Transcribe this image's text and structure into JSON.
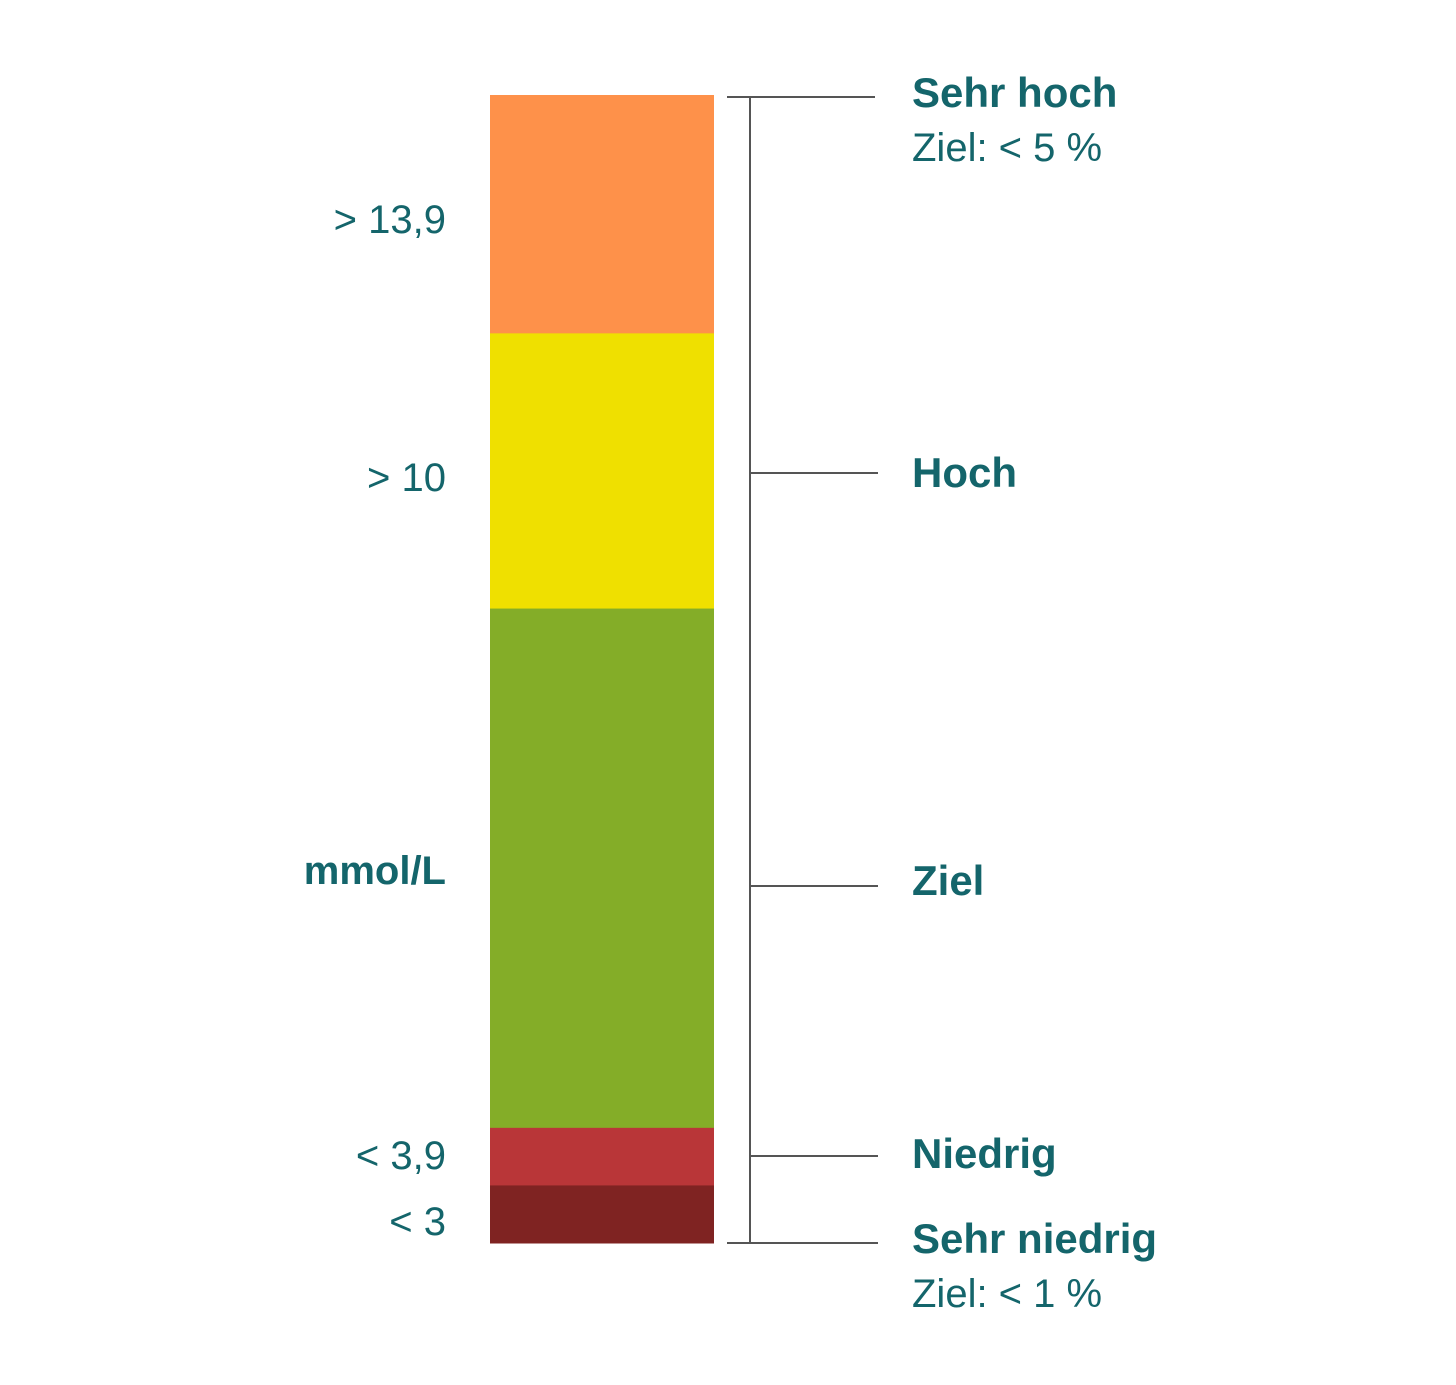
{
  "chart_data": {
    "type": "stacked-range-bar",
    "unit": "mmol/L",
    "ranges": [
      {
        "key": "sehr_hoch",
        "name": "Sehr hoch",
        "threshold": "> 13,9",
        "target": "Ziel: < 5 %",
        "color": "#fe914a",
        "share": 20.7
      },
      {
        "key": "hoch",
        "name": "Hoch",
        "threshold": "> 10",
        "target": "",
        "color": "#efe000",
        "share": 23.9
      },
      {
        "key": "ziel",
        "name": "Ziel",
        "threshold": "",
        "target": "",
        "color": "#84ad28",
        "share": 45.1
      },
      {
        "key": "niedrig",
        "name": "Niedrig",
        "threshold": "< 3,9",
        "target": "",
        "color": "#b93638",
        "share": 5.0
      },
      {
        "key": "sehr_niedrig",
        "name": "Sehr niedrig",
        "threshold": "< 3",
        "target": "Ziel: < 1 %",
        "color": "#7f2322",
        "share": 5.0
      }
    ],
    "bracket_color": "#555555",
    "text_color": "#14656b"
  }
}
